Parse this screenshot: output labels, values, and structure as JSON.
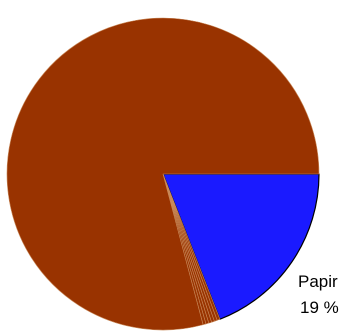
{
  "chart_data": {
    "type": "pie",
    "title": "",
    "slices": [
      {
        "label": "Papir",
        "percent_label": "19 %",
        "value": 19,
        "color": "#1a1aff"
      },
      {
        "label": "",
        "percent_label": "",
        "value": 0.3,
        "color": "#993300"
      },
      {
        "label": "",
        "percent_label": "",
        "value": 0.3,
        "color": "#993300"
      },
      {
        "label": "",
        "percent_label": "",
        "value": 0.3,
        "color": "#993300"
      },
      {
        "label": "",
        "percent_label": "",
        "value": 0.3,
        "color": "#993300"
      },
      {
        "label": "",
        "percent_label": "",
        "value": 0.3,
        "color": "#993300"
      },
      {
        "label": "",
        "percent_label": "",
        "value": 0.3,
        "color": "#993300"
      },
      {
        "label": "",
        "percent_label": "",
        "value": 78.9,
        "color": "#993300"
      }
    ],
    "start_angle_deg": 0,
    "direction": "clockwise"
  }
}
